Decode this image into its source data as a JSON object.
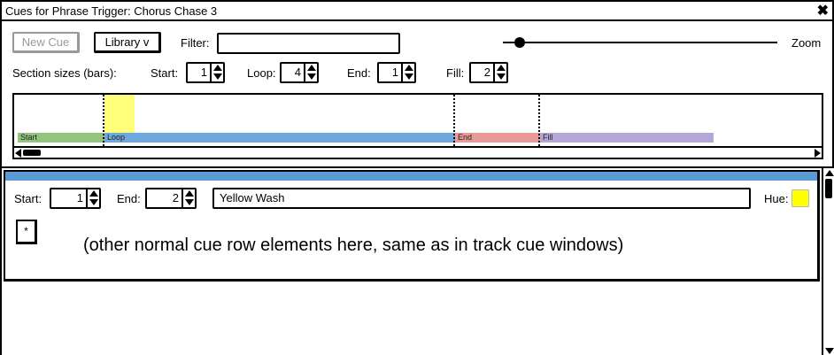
{
  "window": {
    "title": "Cues for Phrase Trigger: Chorus Chase 3",
    "close_glyph": "✖"
  },
  "toolbar": {
    "new_cue_label": "New Cue",
    "library_label": "Library v",
    "filter_label": "Filter:",
    "filter_value": "",
    "zoom_label": "Zoom",
    "zoom_level": 0.06
  },
  "sections": {
    "label": "Section sizes (bars):",
    "start_label": "Start:",
    "start_value": "1",
    "loop_label": "Loop:",
    "loop_value": "4",
    "end_label": "End:",
    "end_value": "1",
    "fill_label": "Fill:",
    "fill_value": "2"
  },
  "timeline": {
    "segments": [
      {
        "name": "Start",
        "color": "#93c47d"
      },
      {
        "name": "Loop",
        "color": "#6fa8dc"
      },
      {
        "name": "End",
        "color": "#ea9999"
      },
      {
        "name": "Fill",
        "color": "#b4a7d6"
      }
    ]
  },
  "cue": {
    "start_label": "Start:",
    "start_value": "1",
    "end_label": "End:",
    "end_value": "2",
    "name_value": "Yellow Wash",
    "hue_label": "Hue:",
    "hue_color": "#ffff00",
    "star_label": "*",
    "note": "(other normal cue row elements here, same as in track cue windows)"
  }
}
